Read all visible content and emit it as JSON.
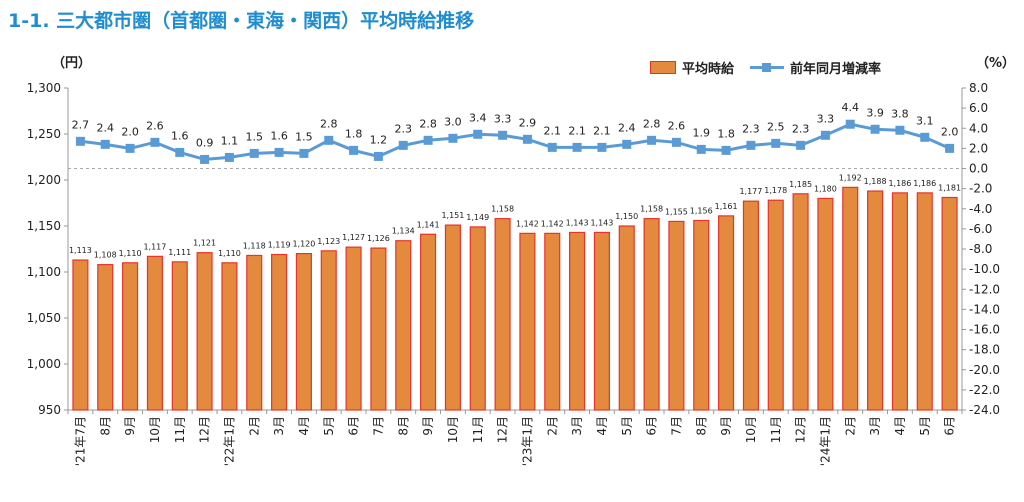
{
  "page": {
    "title": "1-1. 三大都市圏（首都圏・東海・関西）平均時給推移",
    "left_unit": "（円）",
    "right_unit": "（%）"
  },
  "legend": {
    "bar_label": "平均時給",
    "line_label": "前年同月増減率"
  },
  "colors": {
    "title": "#1f8dcf",
    "bar_fill": "#e38a3f",
    "bar_stroke": "#e8332a",
    "line": "#5b9bd5"
  },
  "chart_data": {
    "type": "bar",
    "categories": [
      "'21年7月",
      "8月",
      "9月",
      "10月",
      "11月",
      "12月",
      "'22年1月",
      "2月",
      "3月",
      "4月",
      "5月",
      "6月",
      "7月",
      "8月",
      "9月",
      "10月",
      "11月",
      "12月",
      "'23年1月",
      "2月",
      "3月",
      "4月",
      "5月",
      "6月",
      "7月",
      "8月",
      "9月",
      "10月",
      "11月",
      "12月",
      "'24年1月",
      "2月",
      "3月",
      "4月",
      "5月",
      "6月"
    ],
    "series": [
      {
        "name": "平均時給",
        "type": "bar",
        "axis": "left",
        "values": [
          1113,
          1108,
          1110,
          1117,
          1111,
          1121,
          1110,
          1118,
          1119,
          1120,
          1123,
          1127,
          1126,
          1134,
          1141,
          1151,
          1149,
          1158,
          1142,
          1142,
          1143,
          1143,
          1150,
          1158,
          1155,
          1156,
          1161,
          1177,
          1178,
          1185,
          1180,
          1192,
          1188,
          1186,
          1186,
          1181
        ],
        "labels": [
          "1,113",
          "1,108",
          "1,110",
          "1,117",
          "1,111",
          "1,121",
          "1,110",
          "1,118",
          "1,119",
          "1,120",
          "1,123",
          "1,127",
          "1,126",
          "1,134",
          "1,141",
          "1,151",
          "1,149",
          "1,158",
          "1,142",
          "1,142",
          "1,143",
          "1,143",
          "1,150",
          "1,158",
          "1,155",
          "1,156",
          "1,161",
          "1,177",
          "1,178",
          "1,185",
          "1,180",
          "1,192",
          "1,188",
          "1,186",
          "1,186",
          "1,181"
        ]
      },
      {
        "name": "前年同月増減率",
        "type": "line",
        "axis": "right",
        "values": [
          2.7,
          2.4,
          2.0,
          2.6,
          1.6,
          0.9,
          1.1,
          1.5,
          1.6,
          1.5,
          2.8,
          1.8,
          1.2,
          2.3,
          2.8,
          3.0,
          3.4,
          3.3,
          2.9,
          2.1,
          2.1,
          2.1,
          2.4,
          2.8,
          2.6,
          1.9,
          1.8,
          2.3,
          2.5,
          2.3,
          3.3,
          4.4,
          3.9,
          3.8,
          3.1,
          2.0
        ],
        "labels": [
          "2.7",
          "2.4",
          "2.0",
          "2.6",
          "1.6",
          "0.9",
          "1.1",
          "1.5",
          "1.6",
          "1.5",
          "2.8",
          "1.8",
          "1.2",
          "2.3",
          "2.8",
          "3.0",
          "3.4",
          "3.3",
          "2.9",
          "2.1",
          "2.1",
          "2.1",
          "2.4",
          "2.8",
          "2.6",
          "1.9",
          "1.8",
          "2.3",
          "2.5",
          "2.3",
          "3.3",
          "4.4",
          "3.9",
          "3.8",
          "3.1",
          "2.0"
        ]
      }
    ],
    "left_axis": {
      "ylim": [
        950,
        1300
      ],
      "ticks": [
        950,
        1000,
        1050,
        1100,
        1150,
        1200,
        1250,
        1300
      ],
      "tick_labels": [
        "950",
        "1,000",
        "1,050",
        "1,100",
        "1,150",
        "1,200",
        "1,250",
        "1,300"
      ]
    },
    "right_axis": {
      "ylim": [
        -24,
        8
      ],
      "ticks": [
        -24,
        -22,
        -20,
        -18,
        -16,
        -14,
        -12,
        -10,
        -8,
        -6,
        -4,
        -2,
        0,
        2,
        4,
        6,
        8
      ],
      "tick_labels": [
        "-24.0",
        "-22.0",
        "-20.0",
        "-18.0",
        "-16.0",
        "-14.0",
        "-12.0",
        "-10.0",
        "-8.0",
        "-6.0",
        "-4.0",
        "-2.0",
        "0.0",
        "2.0",
        "4.0",
        "6.0",
        "8.0"
      ]
    },
    "zero_line": "dashed",
    "grid": false,
    "legend_position": "top-right"
  }
}
